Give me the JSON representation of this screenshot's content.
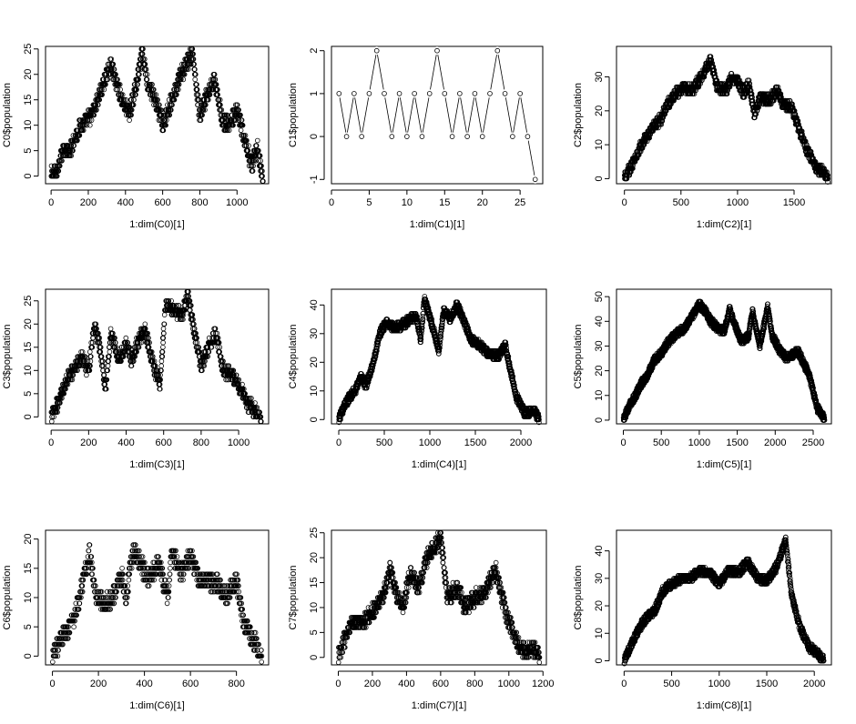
{
  "chart_data": [
    {
      "type": "scatter",
      "xlabel": "1:dim(C0)[1]",
      "ylabel": "C0$population",
      "xlim": [
        -30,
        1170
      ],
      "ylim": [
        -1.5,
        25.5
      ],
      "xticks": [
        0,
        200,
        400,
        600,
        800,
        1000
      ],
      "yticks": [
        0,
        5,
        10,
        15,
        20,
        25
      ],
      "n": 1140,
      "anchors": [
        [
          0,
          0
        ],
        [
          30,
          1
        ],
        [
          60,
          5
        ],
        [
          100,
          5
        ],
        [
          160,
          10
        ],
        [
          220,
          12
        ],
        [
          280,
          18
        ],
        [
          320,
          22
        ],
        [
          380,
          15
        ],
        [
          420,
          12
        ],
        [
          460,
          18
        ],
        [
          490,
          24
        ],
        [
          520,
          18
        ],
        [
          560,
          15
        ],
        [
          600,
          10
        ],
        [
          640,
          14
        ],
        [
          700,
          20
        ],
        [
          760,
          24
        ],
        [
          800,
          12
        ],
        [
          840,
          16
        ],
        [
          880,
          19
        ],
        [
          920,
          11
        ],
        [
          960,
          10
        ],
        [
          1000,
          13
        ],
        [
          1040,
          7
        ],
        [
          1080,
          2
        ],
        [
          1110,
          6
        ],
        [
          1130,
          1
        ],
        [
          1140,
          -1
        ]
      ]
    },
    {
      "type": "line",
      "xlabel": "1:dim(C1)[1]",
      "ylabel": "C1$population",
      "xlim": [
        0,
        28
      ],
      "ylim": [
        -1.1,
        2.1
      ],
      "xticks": [
        0,
        5,
        10,
        15,
        20,
        25
      ],
      "yticks": [
        -1.0,
        0.0,
        1.0,
        2.0
      ],
      "x": [
        1,
        2,
        3,
        4,
        5,
        6,
        7,
        8,
        9,
        10,
        11,
        12,
        13,
        14,
        15,
        16,
        17,
        18,
        19,
        20,
        21,
        22,
        23,
        24,
        25,
        26,
        27
      ],
      "y": [
        1,
        0,
        1,
        0,
        1,
        2,
        1,
        0,
        1,
        0,
        1,
        0,
        1,
        2,
        1,
        0,
        1,
        0,
        1,
        0,
        1,
        2,
        1,
        0,
        1,
        0,
        -1
      ]
    },
    {
      "type": "scatter",
      "xlabel": "1:dim(C2)[1]",
      "ylabel": "C2$population",
      "xlim": [
        -70,
        1830
      ],
      "ylim": [
        -1.5,
        39
      ],
      "xticks": [
        0,
        500,
        1000,
        1500
      ],
      "yticks": [
        0,
        10,
        20,
        30
      ],
      "n": 1800,
      "anchors": [
        [
          0,
          0
        ],
        [
          50,
          3
        ],
        [
          150,
          10
        ],
        [
          250,
          15
        ],
        [
          330,
          18
        ],
        [
          380,
          22
        ],
        [
          450,
          25
        ],
        [
          520,
          27
        ],
        [
          600,
          26
        ],
        [
          700,
          31
        ],
        [
          760,
          35
        ],
        [
          820,
          27
        ],
        [
          900,
          26
        ],
        [
          950,
          30
        ],
        [
          1000,
          29
        ],
        [
          1050,
          25
        ],
        [
          1100,
          28
        ],
        [
          1150,
          19
        ],
        [
          1200,
          24
        ],
        [
          1280,
          23
        ],
        [
          1350,
          26
        ],
        [
          1400,
          22
        ],
        [
          1480,
          21
        ],
        [
          1550,
          14
        ],
        [
          1620,
          8
        ],
        [
          1700,
          3
        ],
        [
          1760,
          2
        ],
        [
          1800,
          0
        ]
      ]
    },
    {
      "type": "scatter",
      "xlabel": "1:dim(C3)[1]",
      "ylabel": "C3$population",
      "xlim": [
        -30,
        1160
      ],
      "ylim": [
        -1.5,
        27.5
      ],
      "xticks": [
        0,
        200,
        400,
        600,
        800,
        1000
      ],
      "yticks": [
        0,
        5,
        10,
        15,
        20,
        25
      ],
      "n": 1120,
      "anchors": [
        [
          0,
          0
        ],
        [
          40,
          3
        ],
        [
          80,
          8
        ],
        [
          120,
          10
        ],
        [
          160,
          13
        ],
        [
          200,
          10
        ],
        [
          230,
          20
        ],
        [
          260,
          15
        ],
        [
          290,
          6
        ],
        [
          320,
          18
        ],
        [
          360,
          12
        ],
        [
          400,
          16
        ],
        [
          430,
          12
        ],
        [
          460,
          16
        ],
        [
          500,
          19
        ],
        [
          540,
          12
        ],
        [
          580,
          7
        ],
        [
          610,
          24
        ],
        [
          650,
          23
        ],
        [
          700,
          22
        ],
        [
          730,
          26
        ],
        [
          770,
          17
        ],
        [
          800,
          11
        ],
        [
          850,
          16
        ],
        [
          880,
          18
        ],
        [
          920,
          10
        ],
        [
          960,
          9
        ],
        [
          1000,
          7
        ],
        [
          1050,
          3
        ],
        [
          1090,
          1
        ],
        [
          1120,
          -1
        ]
      ]
    },
    {
      "type": "scatter",
      "xlabel": "1:dim(C4)[1]",
      "ylabel": "C4$population",
      "xlim": [
        -80,
        2280
      ],
      "ylim": [
        -1.5,
        45.5
      ],
      "xticks": [
        0,
        500,
        1000,
        1500,
        2000
      ],
      "yticks": [
        0,
        10,
        20,
        30,
        40
      ],
      "n": 2200,
      "anchors": [
        [
          0,
          0
        ],
        [
          60,
          5
        ],
        [
          120,
          8
        ],
        [
          180,
          10
        ],
        [
          240,
          15
        ],
        [
          300,
          12
        ],
        [
          380,
          20
        ],
        [
          450,
          30
        ],
        [
          520,
          34
        ],
        [
          600,
          32
        ],
        [
          700,
          33
        ],
        [
          780,
          35
        ],
        [
          850,
          36
        ],
        [
          900,
          28
        ],
        [
          940,
          42
        ],
        [
          1000,
          36
        ],
        [
          1050,
          30
        ],
        [
          1100,
          24
        ],
        [
          1150,
          38
        ],
        [
          1220,
          35
        ],
        [
          1300,
          40
        ],
        [
          1380,
          34
        ],
        [
          1450,
          28
        ],
        [
          1550,
          26
        ],
        [
          1650,
          23
        ],
        [
          1750,
          22
        ],
        [
          1830,
          26
        ],
        [
          1880,
          18
        ],
        [
          1950,
          8
        ],
        [
          2050,
          2
        ],
        [
          2150,
          3
        ],
        [
          2200,
          0
        ]
      ]
    },
    {
      "type": "scatter",
      "xlabel": "1:dim(C5)[1]",
      "ylabel": "C5$population",
      "xlim": [
        -90,
        2740
      ],
      "ylim": [
        -1.5,
        53
      ],
      "xticks": [
        0,
        500,
        1000,
        1500,
        2000,
        2500
      ],
      "yticks": [
        0,
        10,
        20,
        30,
        40,
        50
      ],
      "n": 2650,
      "anchors": [
        [
          0,
          0
        ],
        [
          80,
          6
        ],
        [
          160,
          10
        ],
        [
          240,
          15
        ],
        [
          320,
          18
        ],
        [
          400,
          24
        ],
        [
          500,
          27
        ],
        [
          600,
          32
        ],
        [
          700,
          35
        ],
        [
          800,
          37
        ],
        [
          900,
          42
        ],
        [
          1000,
          47
        ],
        [
          1080,
          44
        ],
        [
          1150,
          40
        ],
        [
          1250,
          37
        ],
        [
          1330,
          36
        ],
        [
          1400,
          45
        ],
        [
          1450,
          40
        ],
        [
          1550,
          32
        ],
        [
          1650,
          34
        ],
        [
          1700,
          44
        ],
        [
          1800,
          30
        ],
        [
          1900,
          46
        ],
        [
          1960,
          34
        ],
        [
          2050,
          29
        ],
        [
          2150,
          25
        ],
        [
          2300,
          28
        ],
        [
          2450,
          18
        ],
        [
          2550,
          5
        ],
        [
          2620,
          2
        ],
        [
          2650,
          0
        ]
      ]
    },
    {
      "type": "scatter",
      "xlabel": "1:dim(C6)[1]",
      "ylabel": "C6$population",
      "xlim": [
        -30,
        940
      ],
      "ylim": [
        -1.5,
        21.5
      ],
      "xticks": [
        0,
        200,
        400,
        600,
        800
      ],
      "yticks": [
        0,
        5,
        10,
        15,
        20
      ],
      "n": 910,
      "anchors": [
        [
          0,
          0
        ],
        [
          40,
          3
        ],
        [
          80,
          5
        ],
        [
          110,
          9
        ],
        [
          140,
          14
        ],
        [
          160,
          18
        ],
        [
          190,
          10
        ],
        [
          230,
          9
        ],
        [
          260,
          10
        ],
        [
          300,
          14
        ],
        [
          320,
          10
        ],
        [
          350,
          18
        ],
        [
          380,
          16
        ],
        [
          420,
          13
        ],
        [
          460,
          16
        ],
        [
          500,
          10
        ],
        [
          520,
          18
        ],
        [
          560,
          14
        ],
        [
          600,
          17
        ],
        [
          640,
          13
        ],
        [
          680,
          13
        ],
        [
          720,
          12
        ],
        [
          760,
          10
        ],
        [
          800,
          13
        ],
        [
          830,
          6
        ],
        [
          870,
          3
        ],
        [
          910,
          0
        ]
      ]
    },
    {
      "type": "scatter",
      "xlabel": "1:dim(C7)[1]",
      "ylabel": "C7$population",
      "xlim": [
        -40,
        1220
      ],
      "ylim": [
        -1.5,
        25.5
      ],
      "xticks": [
        0,
        200,
        400,
        600,
        800,
        1000,
        1200
      ],
      "yticks": [
        0,
        5,
        10,
        15,
        20,
        25
      ],
      "n": 1180,
      "anchors": [
        [
          0,
          0
        ],
        [
          30,
          3
        ],
        [
          80,
          7
        ],
        [
          140,
          7
        ],
        [
          200,
          9
        ],
        [
          260,
          12
        ],
        [
          300,
          18
        ],
        [
          340,
          13
        ],
        [
          380,
          10
        ],
        [
          420,
          17
        ],
        [
          470,
          14
        ],
        [
          520,
          20
        ],
        [
          560,
          22
        ],
        [
          600,
          24
        ],
        [
          640,
          12
        ],
        [
          700,
          14
        ],
        [
          740,
          10
        ],
        [
          800,
          12
        ],
        [
          860,
          13
        ],
        [
          920,
          18
        ],
        [
          960,
          12
        ],
        [
          1000,
          7
        ],
        [
          1050,
          3
        ],
        [
          1100,
          1
        ],
        [
          1140,
          2
        ],
        [
          1180,
          0
        ]
      ]
    },
    {
      "type": "scatter",
      "xlabel": "1:dim(C8)[1]",
      "ylabel": "C8$population",
      "xlim": [
        -80,
        2180
      ],
      "ylim": [
        -1.5,
        47.5
      ],
      "xticks": [
        0,
        500,
        1000,
        1500,
        2000
      ],
      "yticks": [
        0,
        10,
        20,
        30,
        40
      ],
      "n": 2100,
      "anchors": [
        [
          0,
          0
        ],
        [
          80,
          6
        ],
        [
          160,
          12
        ],
        [
          240,
          16
        ],
        [
          320,
          18
        ],
        [
          400,
          25
        ],
        [
          460,
          27
        ],
        [
          520,
          28
        ],
        [
          600,
          30
        ],
        [
          700,
          30
        ],
        [
          800,
          33
        ],
        [
          900,
          32
        ],
        [
          1000,
          28
        ],
        [
          1100,
          33
        ],
        [
          1200,
          32
        ],
        [
          1300,
          36
        ],
        [
          1400,
          30
        ],
        [
          1500,
          29
        ],
        [
          1600,
          34
        ],
        [
          1700,
          44
        ],
        [
          1760,
          24
        ],
        [
          1850,
          12
        ],
        [
          1950,
          5
        ],
        [
          2050,
          2
        ],
        [
          2100,
          0
        ]
      ]
    }
  ]
}
